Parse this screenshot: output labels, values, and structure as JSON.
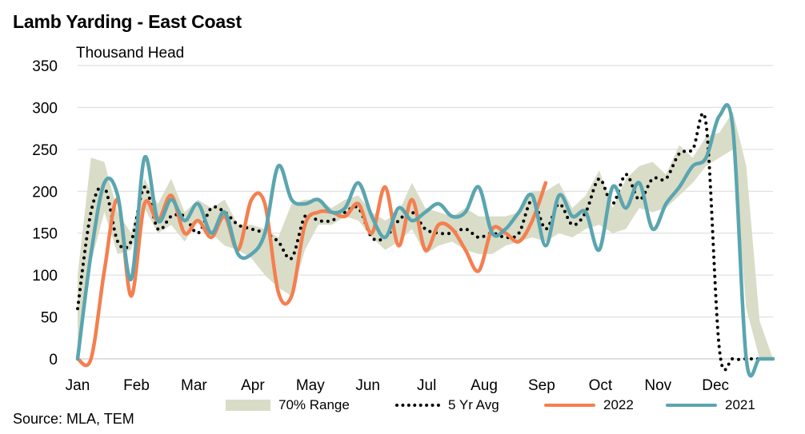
{
  "chart_data": {
    "type": "line",
    "title": "Lamb Yarding - East Coast",
    "ylabel": "Thousand Head",
    "source": "Source: MLA, TEM",
    "ylim": [
      0,
      350
    ],
    "yticks": [
      0,
      50,
      100,
      150,
      200,
      250,
      300,
      350
    ],
    "xlim": [
      1,
      53
    ],
    "xaxis_unit": "week of year",
    "month_labels": [
      "Jan",
      "Feb",
      "Mar",
      "Apr",
      "May",
      "Jun",
      "Jul",
      "Aug",
      "Sep",
      "Oct",
      "Nov",
      "Dec"
    ],
    "month_weeks": [
      1,
      5.4,
      9.7,
      14.1,
      18.4,
      22.7,
      27.1,
      31.4,
      35.7,
      40.1,
      44.4,
      48.7
    ],
    "grid": "horizontal",
    "legend_position": "bottom",
    "colors": {
      "range": "#d9dcc7",
      "avg": "#000000",
      "s2022": "#f47f4f",
      "s2021": "#5aa5b0",
      "grid": "#d9d9d9"
    },
    "series": [
      {
        "name": "70% Range",
        "kind": "band",
        "x": [
          1,
          2,
          3,
          4,
          5,
          6,
          7,
          8,
          9,
          10,
          11,
          12,
          13,
          14,
          15,
          16,
          17,
          18,
          19,
          20,
          21,
          22,
          23,
          24,
          25,
          26,
          27,
          28,
          29,
          30,
          31,
          32,
          33,
          34,
          35,
          36,
          37,
          38,
          39,
          40,
          41,
          42,
          43,
          44,
          45,
          46,
          47,
          48,
          49,
          50,
          51,
          52,
          53
        ],
        "low": [
          15,
          115,
          175,
          125,
          130,
          180,
          150,
          160,
          140,
          165,
          150,
          135,
          130,
          120,
          100,
          85,
          75,
          130,
          160,
          160,
          170,
          165,
          145,
          130,
          140,
          155,
          125,
          135,
          140,
          130,
          125,
          125,
          135,
          140,
          145,
          140,
          150,
          145,
          155,
          160,
          150,
          155,
          180,
          175,
          180,
          195,
          210,
          230,
          240,
          250,
          60,
          0,
          0
        ],
        "high": [
          100,
          240,
          235,
          175,
          150,
          215,
          185,
          215,
          175,
          190,
          180,
          190,
          160,
          160,
          155,
          145,
          185,
          190,
          190,
          180,
          190,
          195,
          175,
          165,
          175,
          210,
          180,
          175,
          170,
          180,
          170,
          170,
          170,
          175,
          200,
          200,
          210,
          180,
          195,
          225,
          180,
          215,
          230,
          235,
          220,
          255,
          240,
          265,
          270,
          295,
          230,
          45,
          0
        ]
      },
      {
        "name": "5 Yr Avg",
        "kind": "line",
        "x": [
          1,
          2,
          3,
          4,
          5,
          6,
          7,
          8,
          9,
          10,
          11,
          12,
          13,
          14,
          15,
          16,
          17,
          18,
          19,
          20,
          21,
          22,
          23,
          24,
          25,
          26,
          27,
          28,
          29,
          30,
          31,
          32,
          33,
          34,
          35,
          36,
          37,
          38,
          39,
          40,
          41,
          42,
          43,
          44,
          45,
          46,
          47,
          48,
          49,
          50,
          51,
          52,
          53
        ],
        "y": [
          60,
          175,
          205,
          140,
          140,
          205,
          155,
          170,
          170,
          150,
          180,
          175,
          160,
          155,
          150,
          140,
          120,
          170,
          165,
          165,
          175,
          180,
          145,
          145,
          165,
          175,
          155,
          150,
          150,
          155,
          145,
          150,
          145,
          150,
          190,
          155,
          185,
          160,
          175,
          215,
          185,
          220,
          190,
          215,
          215,
          245,
          250,
          280,
          10,
          0,
          0,
          0,
          0
        ]
      },
      {
        "name": "2022",
        "kind": "line",
        "x": [
          1,
          2,
          3,
          4,
          5,
          6,
          7,
          8,
          9,
          10,
          11,
          12,
          13,
          14,
          15,
          16,
          17,
          18,
          19,
          20,
          21,
          22,
          23,
          24,
          25,
          26,
          27,
          28,
          29,
          30,
          31,
          32,
          33,
          34,
          35,
          36
        ],
        "y": [
          0,
          0,
          105,
          190,
          75,
          185,
          165,
          195,
          150,
          165,
          145,
          170,
          130,
          190,
          185,
          80,
          75,
          160,
          175,
          175,
          170,
          185,
          150,
          205,
          135,
          190,
          130,
          160,
          155,
          130,
          105,
          155,
          150,
          140,
          165,
          210
        ]
      },
      {
        "name": "2021",
        "kind": "line",
        "x": [
          1,
          2,
          3,
          4,
          5,
          6,
          7,
          8,
          9,
          10,
          11,
          12,
          13,
          14,
          15,
          16,
          17,
          18,
          19,
          20,
          21,
          22,
          23,
          24,
          25,
          26,
          27,
          28,
          29,
          30,
          31,
          32,
          33,
          34,
          35,
          36,
          37,
          38,
          39,
          40,
          41,
          42,
          43,
          44,
          45,
          46,
          47,
          48,
          49,
          50,
          51,
          52,
          53
        ],
        "y": [
          0,
          125,
          210,
          195,
          95,
          240,
          165,
          190,
          165,
          185,
          150,
          175,
          125,
          125,
          150,
          230,
          190,
          185,
          190,
          175,
          180,
          210,
          170,
          145,
          180,
          165,
          175,
          185,
          170,
          175,
          205,
          150,
          155,
          175,
          195,
          135,
          195,
          170,
          175,
          130,
          205,
          180,
          210,
          155,
          185,
          205,
          230,
          240,
          290,
          275,
          0,
          0,
          0
        ]
      }
    ]
  }
}
